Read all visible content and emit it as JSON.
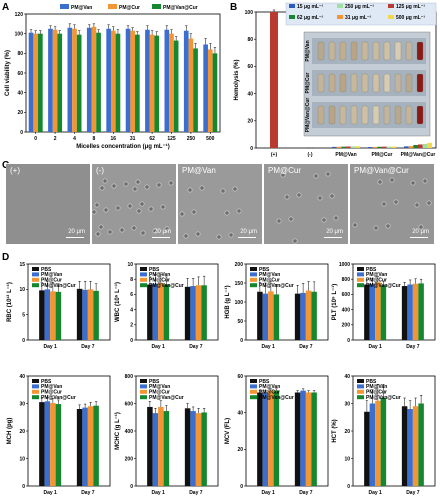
{
  "panels": {
    "A": "A",
    "B": "B",
    "C": "C",
    "D": "D"
  },
  "chart_data": [
    {
      "id": "A",
      "type": "bar",
      "categories": [
        "0",
        "2",
        "4",
        "8",
        "16",
        "31",
        "62",
        "125",
        "250",
        "500"
      ],
      "series": [
        {
          "name": "PM@Van",
          "color": "#3a6fd0",
          "values": [
            101,
            105,
            106,
            106,
            105,
            105,
            104,
            104,
            103,
            89
          ]
        },
        {
          "name": "PM@Cur",
          "color": "#f39533",
          "values": [
            100,
            104,
            105,
            107,
            103,
            103,
            99,
            100,
            95,
            84
          ]
        },
        {
          "name": "PM@Van@Cur",
          "color": "#15882f",
          "values": [
            100,
            100,
            99,
            101,
            100,
            99,
            98,
            93,
            85,
            80
          ]
        }
      ],
      "errors": [
        3,
        3,
        4,
        3,
        4,
        3,
        4,
        4,
        5,
        6
      ],
      "xlabel": "Micelles concentration (μg mL⁻¹)",
      "ylabel": "Cell viability (%)",
      "ylim": [
        0,
        120
      ],
      "yticks": [
        "0",
        "20",
        "40",
        "60",
        "80",
        "100",
        "120"
      ],
      "legend_position": "top"
    },
    {
      "id": "B",
      "type": "bar",
      "categories": [
        "(+)",
        "(-)",
        "PM@Van",
        "PM@Cur",
        "PM@Van@Cur"
      ],
      "single_values": [
        {
          "category": "(+)",
          "value": 100,
          "color": "#b83a30",
          "error": 1.5
        },
        {
          "category": "(-)",
          "value": 0.2,
          "color": "#222222",
          "error": 0
        }
      ],
      "series": [
        {
          "name": "15 μg mL⁻¹",
          "color": "#2d5bbd",
          "values": [
            null,
            null,
            0.8,
            0.7,
            1.2
          ]
        },
        {
          "name": "31 μg mL⁻¹",
          "color": "#f39533",
          "values": [
            null,
            null,
            0.9,
            0.8,
            1.4
          ]
        },
        {
          "name": "62 μg mL⁻¹",
          "color": "#15882f",
          "values": [
            null,
            null,
            1.0,
            0.9,
            2.2
          ]
        },
        {
          "name": "125 μg mL⁻¹",
          "color": "#b83a30",
          "values": [
            null,
            null,
            1.1,
            1.0,
            2.6
          ]
        },
        {
          "name": "250 μg mL⁻¹",
          "color": "#9ee0a0",
          "values": [
            null,
            null,
            1.2,
            1.0,
            3.0
          ]
        },
        {
          "name": "500 μg mL⁻¹",
          "color": "#f2d84a",
          "values": [
            null,
            null,
            1.3,
            1.1,
            3.8
          ]
        }
      ],
      "ylabel": "Hemolysis (%)",
      "ylim": [
        0,
        100
      ],
      "yticks": [
        "0",
        "20",
        "40",
        "60",
        "80",
        "100"
      ],
      "inset_labels": [
        "PM@Van",
        "PM@Cur",
        "PM@Van@Cur"
      ],
      "legend_position": "top"
    }
  ],
  "panel_c": {
    "images": [
      {
        "label": "(+)",
        "scale": "20 μm"
      },
      {
        "label": "(-)",
        "scale": "20 μm"
      },
      {
        "label": "PM@Van",
        "scale": "20 μm"
      },
      {
        "label": "PM@Cur",
        "scale": "20 μm"
      },
      {
        "label": "PM@Van@Cur",
        "scale": "20 μm"
      }
    ]
  },
  "panel_d": {
    "categories": [
      "Day 1",
      "Day 7"
    ],
    "legend": [
      {
        "name": "PBS",
        "color": "#111111"
      },
      {
        "name": "PM@Van",
        "color": "#3a6fd0"
      },
      {
        "name": "PM@Cur",
        "color": "#f39533"
      },
      {
        "name": "PM@Van@Cur",
        "color": "#15882f"
      }
    ],
    "charts": [
      {
        "ylabel": "RBC (10¹² L⁻¹)",
        "ylim": [
          0,
          15
        ],
        "yticks": [
          "0",
          "5",
          "10",
          "15"
        ],
        "values": [
          [
            9.8,
            10.0,
            9.6,
            9.5
          ],
          [
            10.1,
            9.9,
            10.0,
            9.7
          ]
        ],
        "errors": [
          [
            1.5,
            1.6,
            1.8,
            1.6
          ],
          [
            1.5,
            1.7,
            1.6,
            1.4
          ]
        ]
      },
      {
        "ylabel": "WBC (10⁹ L⁻¹)",
        "ylim": [
          0,
          10
        ],
        "yticks": [
          "0",
          "2",
          "4",
          "6",
          "8",
          "10"
        ],
        "values": [
          [
            7.3,
            7.4,
            7.5,
            7.3
          ],
          [
            7.0,
            7.1,
            7.2,
            7.2
          ]
        ],
        "errors": [
          [
            1.0,
            1.2,
            1.1,
            1.0
          ],
          [
            1.1,
            1.0,
            1.1,
            1.2
          ]
        ]
      },
      {
        "ylabel": "HGB (g L⁻¹)",
        "ylim": [
          0,
          200
        ],
        "yticks": [
          "0",
          "50",
          "100",
          "150",
          "200"
        ],
        "values": [
          [
            127,
            122,
            128,
            120
          ],
          [
            122,
            124,
            130,
            127
          ]
        ],
        "errors": [
          [
            25,
            28,
            27,
            26
          ],
          [
            22,
            25,
            24,
            26
          ]
        ]
      },
      {
        "ylabel": "PLT (10⁹ L⁻¹)",
        "ylim": [
          0,
          1000
        ],
        "yticks": [
          "0",
          "200",
          "400",
          "600",
          "800",
          "1000"
        ],
        "values": [
          [
            730,
            740,
            760,
            720
          ],
          [
            710,
            730,
            740,
            745
          ]
        ],
        "errors": [
          [
            60,
            70,
            75,
            55
          ],
          [
            50,
            60,
            65,
            55
          ]
        ]
      },
      {
        "ylabel": "MCH (pg)",
        "ylim": [
          0,
          40
        ],
        "yticks": [
          "0",
          "10",
          "20",
          "30",
          "40"
        ],
        "values": [
          [
            30.5,
            30.8,
            30.2,
            29.8
          ],
          [
            28.0,
            28.5,
            29.0,
            29.2
          ]
        ],
        "errors": [
          [
            1.5,
            1.4,
            1.6,
            1.5
          ],
          [
            1.5,
            1.3,
            1.4,
            1.5
          ]
        ]
      },
      {
        "ylabel": "MCHC (g L⁻¹)",
        "ylim": [
          0,
          800
        ],
        "yticks": [
          "0",
          "200",
          "400",
          "600",
          "800"
        ],
        "values": [
          [
            575,
            530,
            575,
            545
          ],
          [
            565,
            545,
            530,
            535
          ]
        ],
        "errors": [
          [
            40,
            35,
            45,
            40
          ],
          [
            35,
            30,
            35,
            30
          ]
        ]
      },
      {
        "ylabel": "MCV (FL)",
        "ylim": [
          0,
          60
        ],
        "yticks": [
          "0",
          "20",
          "40",
          "60"
        ],
        "values": [
          [
            51,
            51,
            52,
            52
          ],
          [
            51,
            52,
            51,
            51
          ]
        ],
        "errors": [
          [
            1.0,
            1.0,
            1.0,
            1.0
          ],
          [
            1.0,
            1.0,
            1.0,
            1.0
          ]
        ]
      },
      {
        "ylabel": "HCT (%)",
        "ylim": [
          0,
          40
        ],
        "yticks": [
          "0",
          "10",
          "20",
          "30",
          "40"
        ],
        "values": [
          [
            27,
            30,
            31,
            32
          ],
          [
            29,
            28,
            29,
            30
          ]
        ],
        "errors": [
          [
            4,
            5,
            6,
            5
          ],
          [
            3,
            3,
            3,
            3
          ]
        ]
      }
    ]
  }
}
